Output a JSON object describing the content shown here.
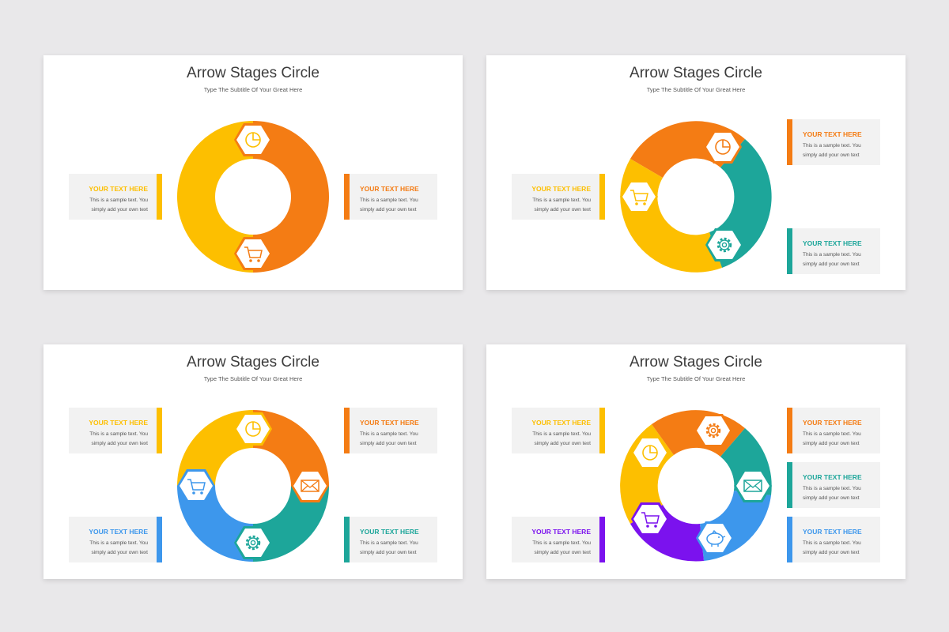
{
  "colors": {
    "yellow": "#fdbf00",
    "orange": "#f47c14",
    "teal": "#1da69a",
    "blue": "#3d97ec",
    "purple": "#7b12ee"
  },
  "slides": [
    {
      "title": "Arrow Stages Circle",
      "subtitle": "Type The Subtitle Of Your Great Here",
      "boxes": [
        {
          "heading": "YOUR TEXT HERE",
          "line1": "This is a sample text. You",
          "line2": "simply add your own text",
          "color": "#fdbf00"
        },
        {
          "heading": "YOUR TEXT HERE",
          "line1": "This is a sample text. You",
          "line2": "simply add your own text",
          "color": "#f47c14"
        }
      ],
      "segments": [
        {
          "color": "#f47c14",
          "icon": "pie-chart-icon"
        },
        {
          "color": "#fdbf00",
          "icon": "shopping-cart-icon"
        }
      ]
    },
    {
      "title": "Arrow Stages Circle",
      "subtitle": "Type The Subtitle Of Your Great Here",
      "boxes": [
        {
          "heading": "YOUR TEXT HERE",
          "line1": "This is a sample text. You",
          "line2": "simply add your own text",
          "color": "#fdbf00"
        },
        {
          "heading": "YOUR TEXT HERE",
          "line1": "This is a sample text. You",
          "line2": "simply add your own text",
          "color": "#f47c14"
        },
        {
          "heading": "YOUR TEXT HERE",
          "line1": "This is a sample text. You",
          "line2": "simply add your own text",
          "color": "#1da69a"
        }
      ],
      "segments": [
        {
          "color": "#f47c14",
          "icon": "pie-chart-icon"
        },
        {
          "color": "#1da69a",
          "icon": "gear-icon"
        },
        {
          "color": "#fdbf00",
          "icon": "shopping-cart-icon"
        }
      ]
    },
    {
      "title": "Arrow Stages Circle",
      "subtitle": "Type The Subtitle Of Your Great Here",
      "boxes": [
        {
          "heading": "YOUR TEXT HERE",
          "line1": "This is a sample text. You",
          "line2": "simply add your own text",
          "color": "#fdbf00"
        },
        {
          "heading": "YOUR TEXT HERE",
          "line1": "This is a sample text. You",
          "line2": "simply add your own text",
          "color": "#f47c14"
        },
        {
          "heading": "YOUR TEXT HERE",
          "line1": "This is a sample text. You",
          "line2": "simply add your own text",
          "color": "#3d97ec"
        },
        {
          "heading": "YOUR TEXT HERE",
          "line1": "This is a sample text. You",
          "line2": "simply add your own text",
          "color": "#1da69a"
        }
      ],
      "segments": [
        {
          "color": "#fdbf00",
          "icon": "pie-chart-icon"
        },
        {
          "color": "#f47c14",
          "icon": "envelope-icon"
        },
        {
          "color": "#1da69a",
          "icon": "gear-icon"
        },
        {
          "color": "#3d97ec",
          "icon": "shopping-cart-icon"
        }
      ]
    },
    {
      "title": "Arrow Stages Circle",
      "subtitle": "Type The Subtitle Of Your Great Here",
      "boxes": [
        {
          "heading": "YOUR TEXT HERE",
          "line1": "This is a sample text. You",
          "line2": "simply add your own text",
          "color": "#fdbf00"
        },
        {
          "heading": "YOUR TEXT HERE",
          "line1": "This is a sample text. You",
          "line2": "simply add your own text",
          "color": "#7b12ee"
        },
        {
          "heading": "YOUR TEXT HERE",
          "line1": "This is a sample text. You",
          "line2": "simply add your own text",
          "color": "#f47c14"
        },
        {
          "heading": "YOUR TEXT HERE",
          "line1": "This is a sample text. You",
          "line2": "simply add your own text",
          "color": "#1da69a"
        },
        {
          "heading": "YOUR TEXT HERE",
          "line1": "This is a sample text. You",
          "line2": "simply add your own text",
          "color": "#3d97ec"
        }
      ],
      "segments": [
        {
          "color": "#fdbf00",
          "icon": "pie-chart-icon"
        },
        {
          "color": "#f47c14",
          "icon": "gear-icon"
        },
        {
          "color": "#1da69a",
          "icon": "envelope-icon"
        },
        {
          "color": "#3d97ec",
          "icon": "piggy-bank-icon"
        },
        {
          "color": "#7b12ee",
          "icon": "shopping-cart-icon"
        }
      ]
    }
  ]
}
